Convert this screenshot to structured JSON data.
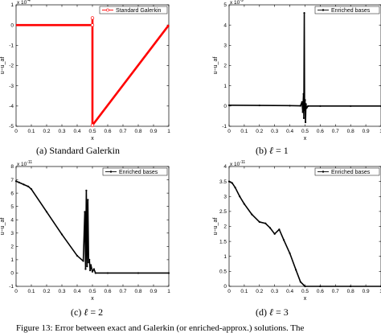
{
  "chart_data": [
    {
      "id": "a",
      "type": "line",
      "exponent": "-4",
      "xlabel": "x",
      "ylabel": "u−u_af",
      "xlim": [
        0,
        1
      ],
      "ylim": [
        -5,
        1
      ],
      "xticks": [
        "0",
        "0.1",
        "0.2",
        "0.3",
        "0.4",
        "0.5",
        "0.6",
        "0.7",
        "0.8",
        "0.9",
        "1"
      ],
      "yticks": [
        "-5",
        "-4",
        "-3",
        "-2",
        "-1",
        "0",
        "1"
      ],
      "legend": "Standard Galerkin",
      "legend_position": "top-right",
      "color": "#ff0000",
      "marker": "open-circle",
      "series": [
        {
          "name": "Standard Galerkin",
          "x": [
            0,
            0.455,
            0.5,
            0.5,
            0.5,
            1
          ],
          "y": [
            0,
            0,
            0,
            0.35,
            -4.95,
            0
          ]
        }
      ],
      "caption_prefix": "(a)",
      "caption_text": "Standard Galerkin"
    },
    {
      "id": "b",
      "type": "line",
      "exponent": "-9",
      "xlabel": "x",
      "ylabel": "u−u_af",
      "xlim": [
        0,
        1
      ],
      "ylim": [
        -1,
        5
      ],
      "xticks": [
        "0",
        "0.1",
        "0.2",
        "0.3",
        "0.4",
        "0.5",
        "0.6",
        "0.7",
        "0.8",
        "0.9",
        "1"
      ],
      "yticks": [
        "-1",
        "0",
        "1",
        "2",
        "3",
        "4",
        "5"
      ],
      "legend": "Enriched bases",
      "legend_position": "top-right",
      "color": "#000000",
      "marker": "dot",
      "series": [
        {
          "name": "Enriched bases",
          "x": [
            0,
            0.2,
            0.4,
            0.47,
            0.48,
            0.485,
            0.49,
            0.492,
            0.495,
            0.497,
            0.5,
            0.503,
            0.506,
            0.51,
            0.52,
            0.6,
            0.8,
            1
          ],
          "y": [
            0.04,
            0.03,
            0.02,
            0.01,
            0.2,
            -0.3,
            0.6,
            -0.6,
            4.6,
            -0.2,
            0.3,
            -0.8,
            0.1,
            -0.1,
            0,
            0,
            0,
            0
          ]
        }
      ],
      "caption_prefix": "(b)",
      "caption_l": "ℓ",
      "caption_eq": "= 1"
    },
    {
      "id": "c",
      "type": "line",
      "exponent": "-11",
      "xlabel": "x",
      "ylabel": "u−u_af",
      "xlim": [
        0,
        1
      ],
      "ylim": [
        -1,
        8
      ],
      "xticks": [
        "0",
        "0.1",
        "0.2",
        "0.3",
        "0.4",
        "0.5",
        "0.6",
        "0.7",
        "0.8",
        "0.9",
        "1"
      ],
      "yticks": [
        "-1",
        "0",
        "1",
        "2",
        "3",
        "4",
        "5",
        "6",
        "7",
        "8"
      ],
      "legend": "Enriched bases",
      "legend_position": "top-right",
      "color": "#000000",
      "marker": "dot",
      "series": [
        {
          "name": "Enriched bases",
          "x": [
            0,
            0.02,
            0.05,
            0.08,
            0.1,
            0.2,
            0.3,
            0.4,
            0.44,
            0.45,
            0.455,
            0.46,
            0.465,
            0.47,
            0.475,
            0.48,
            0.485,
            0.49,
            0.5,
            0.51,
            0.52,
            0.6,
            0.8,
            1
          ],
          "y": [
            6.9,
            6.8,
            6.65,
            6.5,
            6.3,
            4.6,
            2.9,
            1.3,
            0.9,
            4.6,
            0.3,
            6.2,
            0.5,
            5.5,
            0.8,
            1.0,
            0.2,
            0.6,
            0.1,
            0.3,
            0,
            0,
            0,
            0
          ]
        }
      ],
      "caption_prefix": "(c)",
      "caption_l": "ℓ",
      "caption_eq": "= 2"
    },
    {
      "id": "d",
      "type": "line",
      "exponent": "-11",
      "xlabel": "x",
      "ylabel": "u−u_af",
      "xlim": [
        0,
        1
      ],
      "ylim": [
        0,
        4
      ],
      "xticks": [
        "0",
        "0.1",
        "0.2",
        "0.3",
        "0.4",
        "0.5",
        "0.6",
        "0.7",
        "0.8",
        "0.9",
        "1"
      ],
      "yticks": [
        "0",
        "0.5",
        "1",
        "1.5",
        "2",
        "2.5",
        "3",
        "3.5",
        "4"
      ],
      "legend": "Enriched bases",
      "legend_position": "top-right",
      "color": "#000000",
      "marker": "dot",
      "series": [
        {
          "name": "Enriched bases",
          "x": [
            0,
            0.02,
            0.04,
            0.07,
            0.1,
            0.15,
            0.2,
            0.24,
            0.27,
            0.3,
            0.33,
            0.36,
            0.4,
            0.44,
            0.47,
            0.5,
            0.6,
            0.8,
            1
          ],
          "y": [
            3.5,
            3.45,
            3.3,
            3.0,
            2.75,
            2.4,
            2.15,
            2.1,
            1.95,
            1.75,
            1.9,
            1.55,
            1.1,
            0.55,
            0.15,
            0,
            0,
            0,
            0
          ]
        }
      ],
      "caption_prefix": "(d)",
      "caption_l": "ℓ",
      "caption_eq": "= 3"
    }
  ],
  "footer": "Figure 13: Error between exact and Galerkin (or enriched-approx.) solutions. The"
}
